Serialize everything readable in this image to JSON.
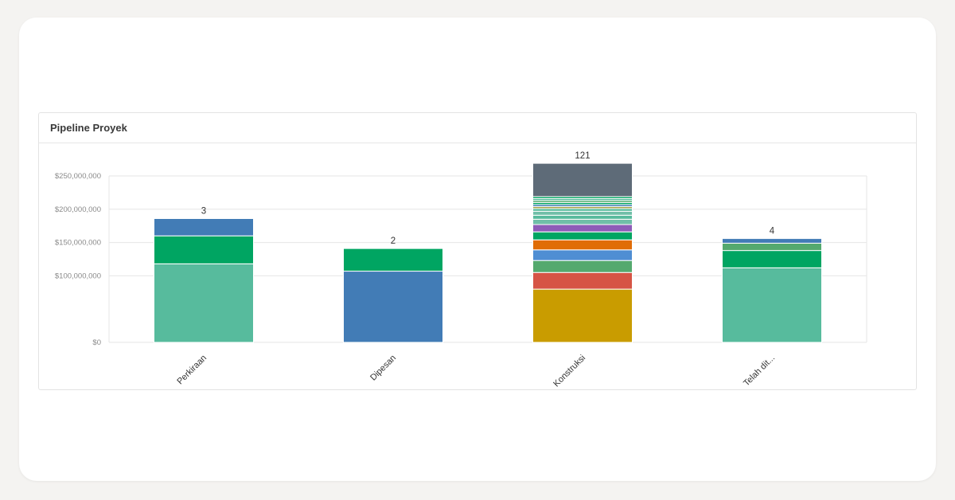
{
  "panel": {
    "title": "Pipeline Proyek"
  },
  "chart_data": {
    "type": "bar",
    "stacked": true,
    "title": "",
    "xlabel": "",
    "ylabel": "",
    "ylim": [
      0,
      250000000
    ],
    "yticks": [
      0,
      100000000,
      150000000,
      200000000,
      250000000
    ],
    "ytick_labels": [
      "$0",
      "$100,000,000",
      "$150,000,000",
      "$200,000,000",
      "$250,000,000"
    ],
    "grid": true,
    "legend": "none",
    "categories": [
      "Perkiraan",
      "Dipesan",
      "Konstruksi",
      "Telah dit..."
    ],
    "totals": [
      "3",
      "2",
      "121",
      "4"
    ],
    "colors": {
      "teal": "#57bb9d",
      "green": "#00a562",
      "blue": "#427cb6",
      "gold": "#c99c00",
      "red": "#d65445",
      "lightgreen": "#54a96e",
      "skyblue": "#4f8ed3",
      "orange": "#e06d06",
      "purple": "#8e5cb8",
      "lightteal": "#70bfa8",
      "slate": "#5e6b78",
      "olive": "#a3a24a"
    },
    "stacks": [
      [
        {
          "value": 118000000,
          "color": "teal"
        },
        {
          "value": 42000000,
          "color": "green"
        },
        {
          "value": 26000000,
          "color": "blue"
        }
      ],
      [
        {
          "value": 107000000,
          "color": "blue"
        },
        {
          "value": 34000000,
          "color": "green"
        }
      ],
      [
        {
          "value": 80000000,
          "color": "gold"
        },
        {
          "value": 25000000,
          "color": "red"
        },
        {
          "value": 18000000,
          "color": "lightgreen"
        },
        {
          "value": 16000000,
          "color": "skyblue"
        },
        {
          "value": 15000000,
          "color": "orange"
        },
        {
          "value": 12000000,
          "color": "green"
        },
        {
          "value": 11000000,
          "color": "purple"
        },
        {
          "value": 8000000,
          "color": "lightteal"
        },
        {
          "value": 6000000,
          "color": "teal"
        },
        {
          "value": 6000000,
          "color": "lightteal"
        },
        {
          "value": 4000000,
          "color": "teal"
        },
        {
          "value": 3000000,
          "color": "olive"
        },
        {
          "value": 3000000,
          "color": "blue"
        },
        {
          "value": 3000000,
          "color": "green"
        },
        {
          "value": 3000000,
          "color": "lightgreen"
        },
        {
          "value": 3000000,
          "color": "teal"
        },
        {
          "value": 3000000,
          "color": "green"
        },
        {
          "value": 50000000,
          "color": "slate"
        }
      ],
      [
        {
          "value": 112000000,
          "color": "teal"
        },
        {
          "value": 26000000,
          "color": "green"
        },
        {
          "value": 11000000,
          "color": "lightgreen"
        },
        {
          "value": 7000000,
          "color": "blue"
        }
      ]
    ]
  }
}
